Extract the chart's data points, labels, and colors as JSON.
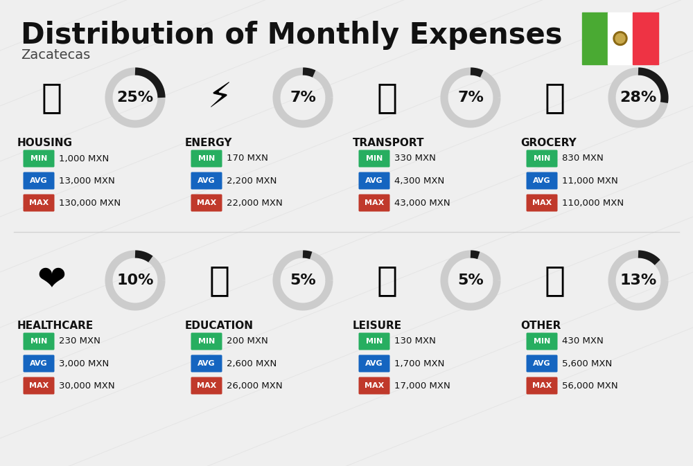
{
  "title": "Distribution of Monthly Expenses",
  "subtitle": "Zacatecas",
  "background_color": "#efefef",
  "categories": [
    {
      "name": "HOUSING",
      "pct": 25,
      "emoji": "🏘",
      "min_val": "1,000 MXN",
      "avg_val": "13,000 MXN",
      "max_val": "130,000 MXN",
      "row": 0,
      "col": 0
    },
    {
      "name": "ENERGY",
      "pct": 7,
      "emoji": "⚡",
      "min_val": "170 MXN",
      "avg_val": "2,200 MXN",
      "max_val": "22,000 MXN",
      "row": 0,
      "col": 1
    },
    {
      "name": "TRANSPORT",
      "pct": 7,
      "emoji": "🚌",
      "min_val": "330 MXN",
      "avg_val": "4,300 MXN",
      "max_val": "43,000 MXN",
      "row": 0,
      "col": 2
    },
    {
      "name": "GROCERY",
      "pct": 28,
      "emoji": "🛒",
      "min_val": "830 MXN",
      "avg_val": "11,000 MXN",
      "max_val": "110,000 MXN",
      "row": 0,
      "col": 3
    },
    {
      "name": "HEALTHCARE",
      "pct": 10,
      "emoji": "❤️",
      "min_val": "230 MXN",
      "avg_val": "3,000 MXN",
      "max_val": "30,000 MXN",
      "row": 1,
      "col": 0
    },
    {
      "name": "EDUCATION",
      "pct": 5,
      "emoji": "🎓",
      "min_val": "200 MXN",
      "avg_val": "2,600 MXN",
      "max_val": "26,000 MXN",
      "row": 1,
      "col": 1
    },
    {
      "name": "LEISURE",
      "pct": 5,
      "emoji": "🛍️",
      "min_val": "130 MXN",
      "avg_val": "1,700 MXN",
      "max_val": "17,000 MXN",
      "row": 1,
      "col": 2
    },
    {
      "name": "OTHER",
      "pct": 13,
      "emoji": "👜",
      "min_val": "430 MXN",
      "avg_val": "5,600 MXN",
      "max_val": "56,000 MXN",
      "row": 1,
      "col": 3
    }
  ],
  "color_min": "#27ae60",
  "color_avg": "#1565c0",
  "color_max": "#c0392b",
  "arc_dark": "#1a1a1a",
  "arc_light": "#cccccc",
  "title_fontsize": 30,
  "subtitle_fontsize": 14,
  "cat_fontsize": 11,
  "val_fontsize": 9.5,
  "pct_fontsize": 16
}
